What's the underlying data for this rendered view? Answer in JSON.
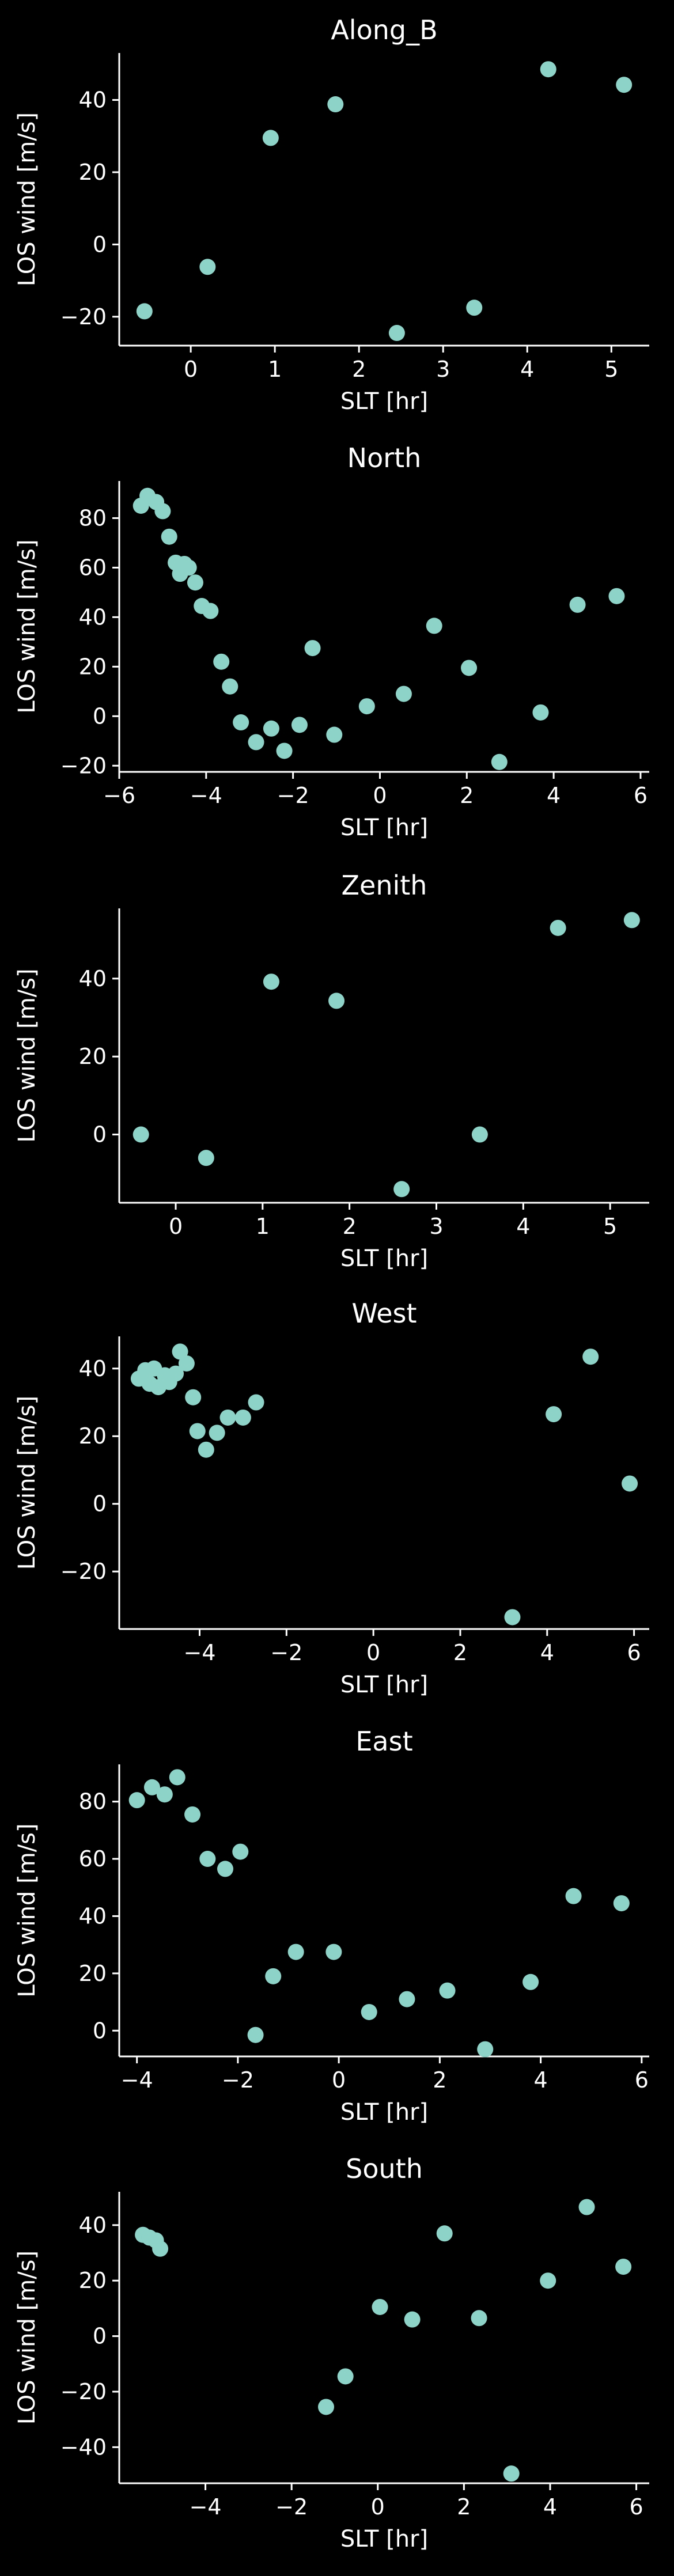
{
  "figure": {
    "background": "#000000",
    "foreground": "#ffffff",
    "marker_color": "#8dd3c7"
  },
  "chart_data": [
    {
      "type": "scatter",
      "title": "Along_B",
      "xlabel": "SLT [hr]",
      "ylabel": "LOS wind [m/s]",
      "xlim": [
        -0.85,
        5.45
      ],
      "ylim": [
        -28,
        53
      ],
      "xticks": [
        0,
        1,
        2,
        3,
        4,
        5
      ],
      "yticks": [
        -20,
        0,
        20,
        40
      ],
      "grid": false,
      "x": [
        -0.55,
        0.2,
        0.95,
        1.72,
        2.45,
        3.37,
        4.25,
        5.15
      ],
      "y": [
        -18.5,
        -6.2,
        29.5,
        38.8,
        -24.5,
        -17.5,
        48.5,
        44.2
      ]
    },
    {
      "type": "scatter",
      "title": "North",
      "xlabel": "SLT [hr]",
      "ylabel": "LOS wind [m/s]",
      "xlim": [
        -6.0,
        6.2
      ],
      "ylim": [
        -22.5,
        95
      ],
      "xticks": [
        -6,
        -4,
        -2,
        0,
        2,
        4,
        6
      ],
      "yticks": [
        -20,
        0,
        20,
        40,
        60,
        80
      ],
      "grid": false,
      "x": [
        -5.5,
        -5.35,
        -5.15,
        -5.0,
        -4.85,
        -4.7,
        -4.6,
        -4.5,
        -4.4,
        -4.25,
        -4.1,
        -3.9,
        -3.65,
        -3.45,
        -3.2,
        -2.85,
        -2.5,
        -2.2,
        -1.85,
        -1.55,
        -1.05,
        -0.3,
        0.55,
        1.25,
        2.05,
        2.75,
        3.7,
        4.55,
        5.45
      ],
      "y": [
        85.0,
        89.0,
        86.5,
        82.8,
        72.5,
        62.0,
        57.5,
        61.5,
        60.0,
        54.0,
        44.5,
        42.5,
        22.0,
        12.0,
        -2.5,
        -10.5,
        -5.0,
        -14.0,
        -3.5,
        27.5,
        -7.5,
        4.0,
        9.0,
        36.5,
        19.5,
        -18.5,
        1.5,
        45.0,
        48.5
      ]
    },
    {
      "type": "scatter",
      "title": "Zenith",
      "xlabel": "SLT [hr]",
      "ylabel": "LOS wind [m/s]",
      "xlim": [
        -0.65,
        5.45
      ],
      "ylim": [
        -17.5,
        58
      ],
      "xticks": [
        0,
        1,
        2,
        3,
        4,
        5
      ],
      "yticks": [
        0,
        20,
        40
      ],
      "grid": false,
      "x": [
        -0.4,
        0.35,
        1.1,
        1.85,
        2.6,
        3.5,
        4.4,
        5.25
      ],
      "y": [
        0.0,
        -6.0,
        39.2,
        34.3,
        -14.0,
        0.0,
        53.0,
        55.0
      ]
    },
    {
      "type": "scatter",
      "title": "West",
      "xlabel": "SLT [hr]",
      "ylabel": "LOS wind [m/s]",
      "xlim": [
        -5.85,
        6.35
      ],
      "ylim": [
        -37,
        49.5
      ],
      "xticks": [
        -4,
        -2,
        0,
        2,
        4,
        6
      ],
      "yticks": [
        -20,
        0,
        20,
        40
      ],
      "grid": false,
      "x": [
        -5.4,
        -5.25,
        -5.15,
        -5.05,
        -4.95,
        -4.8,
        -4.7,
        -4.55,
        -4.45,
        -4.3,
        -4.15,
        -4.05,
        -3.85,
        -3.6,
        -3.35,
        -3.0,
        -2.7,
        3.2,
        4.15,
        5.0,
        5.9
      ],
      "y": [
        37.0,
        39.5,
        35.5,
        40.0,
        34.5,
        38.0,
        36.0,
        38.5,
        45.0,
        41.5,
        31.5,
        21.5,
        16.0,
        21.0,
        25.5,
        25.5,
        30.0,
        -33.5,
        26.5,
        43.5,
        6.0
      ]
    },
    {
      "type": "scatter",
      "title": "East",
      "xlabel": "SLT [hr]",
      "ylabel": "LOS wind [m/s]",
      "xlim": [
        -4.35,
        6.15
      ],
      "ylim": [
        -9,
        93
      ],
      "xticks": [
        -4,
        -2,
        0,
        2,
        4,
        6
      ],
      "yticks": [
        0,
        20,
        40,
        60,
        80
      ],
      "grid": false,
      "x": [
        -4.0,
        -3.7,
        -3.45,
        -3.2,
        -2.9,
        -2.6,
        -2.25,
        -1.95,
        -1.65,
        -1.3,
        -0.85,
        -0.1,
        0.6,
        1.35,
        2.15,
        2.9,
        3.8,
        4.65,
        5.6
      ],
      "y": [
        80.5,
        85.0,
        82.5,
        88.5,
        75.5,
        60.0,
        56.5,
        62.5,
        -1.5,
        19.0,
        27.5,
        27.5,
        6.5,
        11.0,
        14.0,
        -6.5,
        17.0,
        47.0,
        44.5
      ]
    },
    {
      "type": "scatter",
      "title": "South",
      "xlabel": "SLT [hr]",
      "ylabel": "LOS wind [m/s]",
      "xlim": [
        -6.0,
        6.3
      ],
      "ylim": [
        -53,
        52
      ],
      "xticks": [
        -4,
        -2,
        0,
        2,
        4,
        6
      ],
      "yticks": [
        -40,
        -20,
        0,
        20,
        40
      ],
      "grid": false,
      "x": [
        -5.45,
        -5.3,
        -5.15,
        -5.05,
        -1.2,
        -0.75,
        0.05,
        0.8,
        1.55,
        2.35,
        3.1,
        3.95,
        4.85,
        5.7
      ],
      "y": [
        36.5,
        35.5,
        34.5,
        31.5,
        -25.5,
        -14.5,
        10.5,
        6.0,
        37.0,
        6.5,
        -49.5,
        20.0,
        46.5,
        25.0
      ]
    }
  ]
}
